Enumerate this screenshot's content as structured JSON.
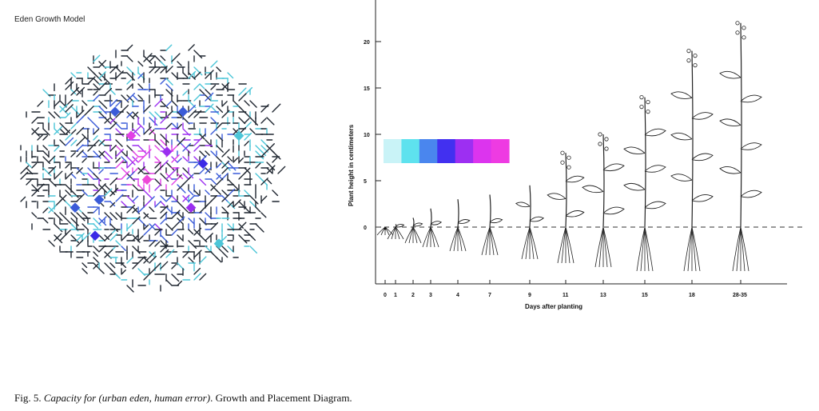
{
  "left_panel": {
    "title": "Eden Growth Model"
  },
  "colors": {
    "dark": "#1f2630",
    "teal": "#4cc6d8",
    "blue": "#3a5bd8",
    "indigo": "#3b2ae6",
    "violet": "#9b2ff0",
    "magenta": "#e23fe6",
    "pink": "#ef47d8"
  },
  "gradient_bar": {
    "colors": [
      "#c9f3f7",
      "#5ee2ee",
      "#4a86ee",
      "#4230f0",
      "#9d2ff2",
      "#dc34ee",
      "#ee3be2"
    ]
  },
  "plant_chart": {
    "ylabel": "Plant height in centimeters",
    "xlabel": "Days after planting",
    "y_ticks": [
      "0",
      "5",
      "10",
      "15",
      "20"
    ],
    "x_ticks": [
      "0",
      "1",
      "2",
      "3",
      "4",
      "7",
      "9",
      "11",
      "13",
      "15",
      "18",
      "28-35"
    ],
    "baseline_style": "dashed"
  },
  "caption": {
    "prefix": "Fig. 5. ",
    "title_italic": "Capacity for (urban eden, human error)",
    "suffix": ". Growth and Placement Diagram."
  }
}
